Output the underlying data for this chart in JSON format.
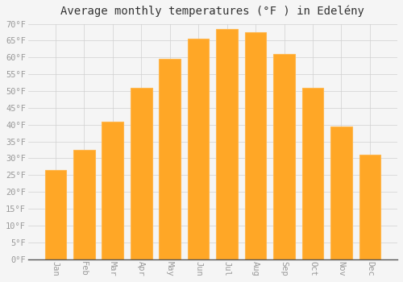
{
  "title": "Average monthly temperatures (°F ) in Edelény",
  "months": [
    "Jan",
    "Feb",
    "Mar",
    "Apr",
    "May",
    "Jun",
    "Jul",
    "Aug",
    "Sep",
    "Oct",
    "Nov",
    "Dec"
  ],
  "values": [
    26.5,
    32.5,
    41.0,
    51.0,
    59.5,
    65.5,
    68.5,
    67.5,
    61.0,
    51.0,
    39.5,
    31.0
  ],
  "bar_color": "#FFA726",
  "bar_edge_color": "#FFB74D",
  "ylim": [
    0,
    70
  ],
  "ytick_step": 5,
  "background_color": "#f5f5f5",
  "plot_bg_color": "#f5f5f5",
  "grid_color": "#d0d0d0",
  "title_fontsize": 10,
  "tick_fontsize": 7.5,
  "tick_color": "#999999",
  "spine_color": "#555555"
}
